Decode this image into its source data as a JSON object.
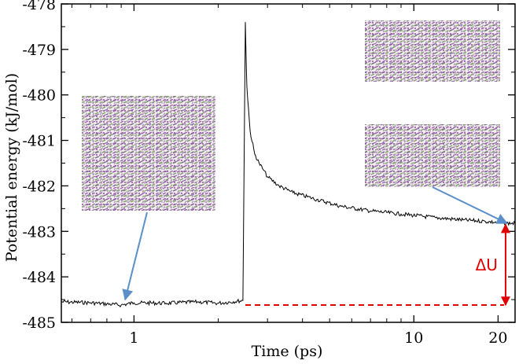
{
  "chart_data": {
    "type": "line",
    "title": "",
    "xlabel": "Time (ps)",
    "ylabel": "Potential energy (kJ/mol)",
    "x_scale": "log",
    "xlim": [
      0.55,
      23
    ],
    "ylim": [
      -485,
      -478
    ],
    "x_ticks": [
      1,
      10,
      20
    ],
    "x_tick_labels": [
      "1",
      "10",
      "20"
    ],
    "y_ticks": [
      -485,
      -484,
      -483,
      -482,
      -481,
      -480,
      -479,
      -478
    ],
    "y_tick_labels": [
      "-485",
      "-484",
      "-483",
      "-482",
      "-481",
      "-480",
      "-479",
      "-478"
    ],
    "series": [
      {
        "name": "potential energy",
        "color": "#000000",
        "x": [
          0.55,
          0.7,
          0.9,
          1.0,
          1.3,
          1.7,
          2.0,
          2.45,
          2.5,
          2.53,
          2.6,
          2.7,
          2.8,
          2.9,
          3.0,
          3.3,
          3.7,
          4.5,
          5.5,
          7,
          9,
          12,
          15,
          18,
          21,
          23
        ],
        "y": [
          -484.55,
          -484.57,
          -484.62,
          -484.57,
          -484.58,
          -484.55,
          -484.58,
          -484.52,
          -478.4,
          -479.8,
          -480.8,
          -481.3,
          -481.5,
          -481.65,
          -481.8,
          -482.0,
          -482.15,
          -482.3,
          -482.45,
          -482.55,
          -482.62,
          -482.7,
          -482.75,
          -482.78,
          -482.82,
          -482.82
        ]
      }
    ],
    "reference_line": {
      "y": -484.62,
      "x_start": 2.5,
      "x_end": 21,
      "style": "dashed",
      "color": "#e00000"
    },
    "annotations": [
      {
        "text": "ΔU",
        "color": "#e00000",
        "y_top": -482.85,
        "y_bottom": -484.62,
        "x": 21
      },
      {
        "kind": "arrow",
        "color": "#5b8fc9",
        "from_inset": "lower-left structure",
        "to_point": [
          0.93,
          -484.5
        ]
      },
      {
        "kind": "arrow",
        "color": "#5b8fc9",
        "from_inset": "right structure",
        "to_point": [
          21.5,
          -482.82
        ]
      }
    ],
    "insets": [
      "lower-left structure",
      "upper-right structure",
      "right structure"
    ]
  }
}
